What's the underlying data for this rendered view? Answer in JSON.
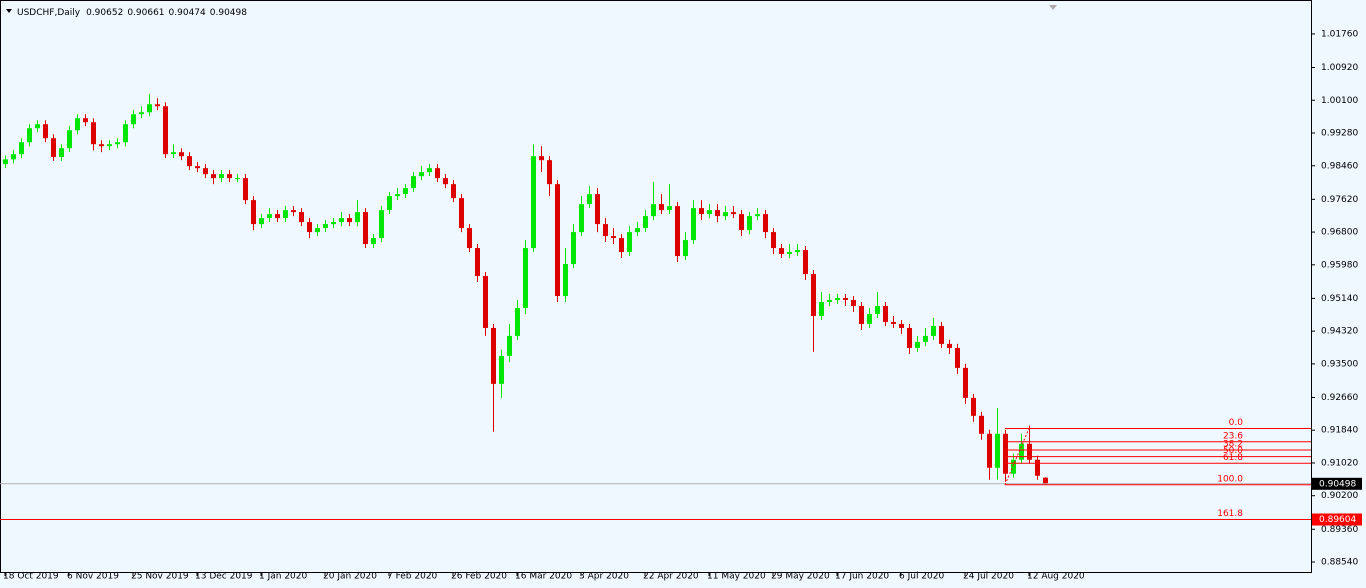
{
  "chart_data": {
    "type": "candlestick",
    "title": "USDCHF,Daily",
    "up_color": "#00e600",
    "down_color": "#dd0000",
    "ylim": [
      0.8829,
      1.0261
    ],
    "yticks": [
      {
        "value": 1.0176,
        "label": "1.01760"
      },
      {
        "value": 1.0092,
        "label": "1.00920"
      },
      {
        "value": 1.001,
        "label": "1.00100"
      },
      {
        "value": 0.9928,
        "label": "0.99280"
      },
      {
        "value": 0.9846,
        "label": "0.98460"
      },
      {
        "value": 0.9762,
        "label": "0.97620"
      },
      {
        "value": 0.968,
        "label": "0.96800"
      },
      {
        "value": 0.9598,
        "label": "0.95980"
      },
      {
        "value": 0.9514,
        "label": "0.95140"
      },
      {
        "value": 0.9432,
        "label": "0.94320"
      },
      {
        "value": 0.935,
        "label": "0.93500"
      },
      {
        "value": 0.9266,
        "label": "0.92660"
      },
      {
        "value": 0.9184,
        "label": "0.91840"
      },
      {
        "value": 0.9102,
        "label": "0.91020"
      },
      {
        "value": 0.902,
        "label": "0.90200"
      },
      {
        "value": 0.8936,
        "label": "0.89360"
      },
      {
        "value": 0.8854,
        "label": "0.88540"
      }
    ],
    "xticks": [
      "18 Oct 2019",
      "6 Nov 2019",
      "25 Nov 2019",
      "13 Dec 2019",
      "1 Jan 2020",
      "20 Jan 2020",
      "7 Feb 2020",
      "26 Feb 2020",
      "16 Mar 2020",
      "3 Apr 2020",
      "22 Apr 2020",
      "11 May 2020",
      "29 May 2020",
      "17 Jun 2020",
      "6 Jul 2020",
      "24 Jul 2020",
      "12 Aug 2020"
    ],
    "open": [
      0.985,
      0.9862,
      0.9875,
      0.9905,
      0.994,
      0.995,
      0.9915,
      0.9868,
      0.989,
      0.9935,
      0.9965,
      0.9955,
      0.99,
      0.9895,
      0.99,
      0.9905,
      0.995,
      0.9975,
      0.998,
      1.0,
      0.9995,
      0.9875,
      0.988,
      0.987,
      0.9845,
      0.984,
      0.9825,
      0.9815,
      0.9825,
      0.9815,
      0.9815,
      0.976,
      0.97,
      0.9715,
      0.9725,
      0.9715,
      0.9735,
      0.973,
      0.9705,
      0.968,
      0.969,
      0.97,
      0.9705,
      0.9715,
      0.9705,
      0.973,
      0.965,
      0.9665,
      0.9735,
      0.977,
      0.9775,
      0.979,
      0.982,
      0.983,
      0.984,
      0.9815,
      0.98,
      0.9765,
      0.969,
      0.964,
      0.957,
      0.944,
      0.93,
      0.937,
      0.942,
      0.949,
      0.964,
      0.987,
      0.986,
      0.98,
      0.952,
      0.96,
      0.968,
      0.975,
      0.9775,
      0.97,
      0.967,
      0.9665,
      0.963,
      0.968,
      0.969,
      0.972,
      0.975,
      0.9735,
      0.9745,
      0.962,
      0.966,
      0.974,
      0.9725,
      0.9735,
      0.972,
      0.973,
      0.9725,
      0.9685,
      0.972,
      0.9725,
      0.968,
      0.964,
      0.9625,
      0.963,
      0.9635,
      0.9575,
      0.947,
      0.9505,
      0.951,
      0.9515,
      0.951,
      0.9495,
      0.945,
      0.9475,
      0.9495,
      0.9455,
      0.945,
      0.944,
      0.939,
      0.9405,
      0.942,
      0.9445,
      0.94,
      0.939,
      0.934,
      0.9265,
      0.922,
      0.9175,
      0.909,
      0.9175,
      0.9075,
      0.911,
      0.915,
      0.911,
      0.90652
    ],
    "high": [
      0.9872,
      0.9885,
      0.9915,
      0.995,
      0.996,
      0.996,
      0.9925,
      0.99,
      0.9945,
      0.9975,
      0.9975,
      0.9965,
      0.991,
      0.991,
      0.9915,
      0.996,
      0.9985,
      0.9995,
      1.0025,
      1.0015,
      1.0005,
      0.99,
      0.989,
      0.988,
      0.9855,
      0.985,
      0.9835,
      0.9835,
      0.9835,
      0.9825,
      0.9825,
      0.977,
      0.9725,
      0.974,
      0.9735,
      0.9745,
      0.9745,
      0.974,
      0.9715,
      0.97,
      0.971,
      0.9715,
      0.973,
      0.9725,
      0.976,
      0.974,
      0.9675,
      0.9745,
      0.978,
      0.979,
      0.98,
      0.983,
      0.9845,
      0.985,
      0.985,
      0.9825,
      0.981,
      0.9775,
      0.97,
      0.965,
      0.958,
      0.945,
      0.9385,
      0.945,
      0.951,
      0.966,
      0.99,
      0.9895,
      0.987,
      0.981,
      0.964,
      0.97,
      0.977,
      0.9795,
      0.979,
      0.9715,
      0.969,
      0.9675,
      0.9695,
      0.9705,
      0.9735,
      0.9805,
      0.9775,
      0.98,
      0.9755,
      0.968,
      0.976,
      0.976,
      0.975,
      0.975,
      0.9745,
      0.9745,
      0.9735,
      0.973,
      0.974,
      0.9735,
      0.969,
      0.965,
      0.965,
      0.965,
      0.9645,
      0.9585,
      0.953,
      0.9525,
      0.9525,
      0.9525,
      0.952,
      0.9505,
      0.949,
      0.953,
      0.9505,
      0.947,
      0.946,
      0.945,
      0.942,
      0.944,
      0.9465,
      0.9455,
      0.941,
      0.94,
      0.935,
      0.9275,
      0.923,
      0.9185,
      0.924,
      0.9185,
      0.9125,
      0.9175,
      0.9195,
      0.912,
      0.90661
    ],
    "low": [
      0.984,
      0.9852,
      0.9865,
      0.9895,
      0.993,
      0.9905,
      0.9858,
      0.9858,
      0.988,
      0.9925,
      0.9945,
      0.9885,
      0.988,
      0.9885,
      0.989,
      0.9895,
      0.994,
      0.9965,
      0.997,
      0.9985,
      0.9865,
      0.9865,
      0.986,
      0.9835,
      0.983,
      0.9815,
      0.98,
      0.9805,
      0.9805,
      0.9805,
      0.975,
      0.9685,
      0.969,
      0.9705,
      0.9705,
      0.9705,
      0.972,
      0.9695,
      0.9665,
      0.967,
      0.968,
      0.969,
      0.9695,
      0.9695,
      0.9695,
      0.964,
      0.964,
      0.9655,
      0.9725,
      0.976,
      0.9765,
      0.978,
      0.981,
      0.982,
      0.9805,
      0.979,
      0.9755,
      0.968,
      0.963,
      0.9555,
      0.942,
      0.918,
      0.9265,
      0.9355,
      0.941,
      0.9475,
      0.963,
      0.983,
      0.977,
      0.9505,
      0.9505,
      0.959,
      0.967,
      0.974,
      0.968,
      0.9655,
      0.965,
      0.9615,
      0.962,
      0.967,
      0.968,
      0.971,
      0.9725,
      0.9725,
      0.9605,
      0.961,
      0.965,
      0.971,
      0.9715,
      0.9705,
      0.971,
      0.9715,
      0.967,
      0.9675,
      0.971,
      0.9665,
      0.9625,
      0.9615,
      0.9615,
      0.962,
      0.956,
      0.938,
      0.946,
      0.9495,
      0.95,
      0.9495,
      0.948,
      0.9435,
      0.944,
      0.9465,
      0.9445,
      0.944,
      0.9425,
      0.9375,
      0.938,
      0.9395,
      0.941,
      0.939,
      0.9375,
      0.9325,
      0.925,
      0.9205,
      0.916,
      0.906,
      0.906,
      0.9055,
      0.9065,
      0.91,
      0.91,
      0.906,
      0.90474
    ],
    "close": [
      0.9862,
      0.9875,
      0.9905,
      0.994,
      0.995,
      0.9915,
      0.9868,
      0.989,
      0.9935,
      0.9965,
      0.9955,
      0.99,
      0.9895,
      0.99,
      0.9905,
      0.995,
      0.9975,
      0.998,
      1.0,
      0.9995,
      0.9875,
      0.988,
      0.987,
      0.9845,
      0.984,
      0.9825,
      0.9815,
      0.9825,
      0.9815,
      0.9815,
      0.976,
      0.97,
      0.9715,
      0.9725,
      0.9715,
      0.9735,
      0.973,
      0.9705,
      0.968,
      0.969,
      0.97,
      0.9705,
      0.9715,
      0.9705,
      0.973,
      0.965,
      0.9665,
      0.9735,
      0.977,
      0.9775,
      0.979,
      0.982,
      0.983,
      0.984,
      0.9815,
      0.98,
      0.9765,
      0.969,
      0.964,
      0.957,
      0.944,
      0.93,
      0.937,
      0.942,
      0.949,
      0.964,
      0.987,
      0.986,
      0.98,
      0.952,
      0.96,
      0.968,
      0.975,
      0.9775,
      0.97,
      0.967,
      0.9665,
      0.963,
      0.968,
      0.969,
      0.972,
      0.975,
      0.9735,
      0.9745,
      0.962,
      0.966,
      0.974,
      0.9725,
      0.9735,
      0.972,
      0.973,
      0.9725,
      0.9685,
      0.972,
      0.9725,
      0.968,
      0.964,
      0.9625,
      0.963,
      0.9635,
      0.9575,
      0.947,
      0.9505,
      0.951,
      0.9515,
      0.951,
      0.9495,
      0.945,
      0.9475,
      0.9495,
      0.9455,
      0.945,
      0.944,
      0.939,
      0.9405,
      0.942,
      0.9445,
      0.94,
      0.939,
      0.934,
      0.9265,
      0.922,
      0.9175,
      0.909,
      0.9175,
      0.9075,
      0.911,
      0.915,
      0.911,
      0.907,
      0.90498
    ],
    "fibo": {
      "color": "#ff0000",
      "levels": [
        {
          "label": "0.0",
          "price": 0.91882
        },
        {
          "label": "23.6",
          "price": 0.9155
        },
        {
          "label": "38.2",
          "price": 0.91344
        },
        {
          "label": "50.0",
          "price": 0.91178
        },
        {
          "label": "61.8",
          "price": 0.91012
        },
        {
          "label": "100.0",
          "price": 0.90474
        },
        {
          "label": "161.8",
          "price": 0.89604
        }
      ]
    }
  }
}
